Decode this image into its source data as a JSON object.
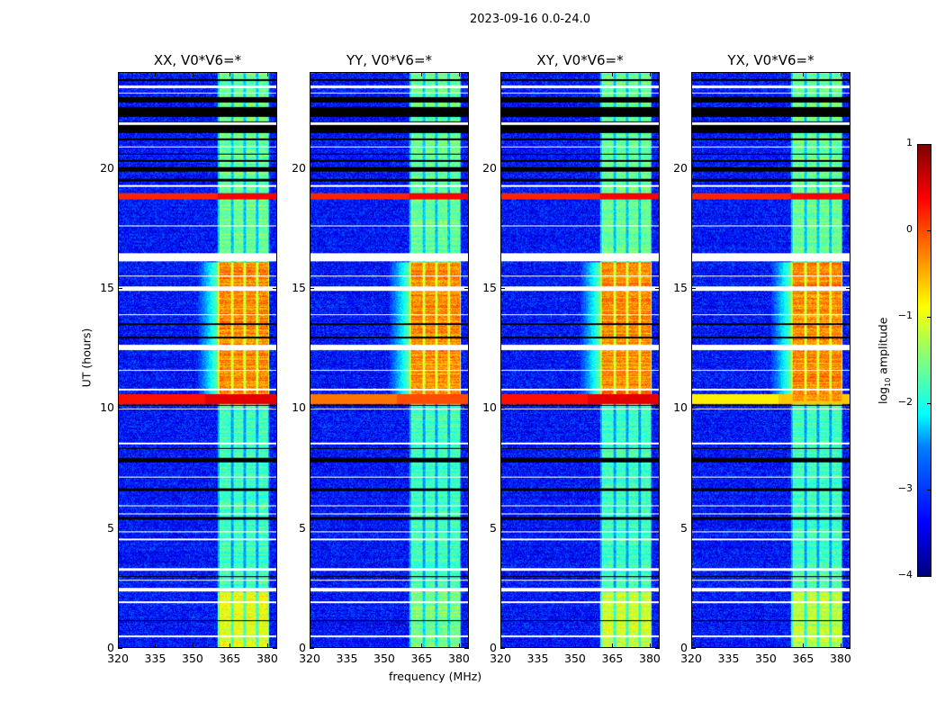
{
  "suptitle": "2023-09-16 0.0-24.0",
  "xlabel": "frequency (MHz)",
  "ylabel": "UT (hours)",
  "chart_data": {
    "type": "heatmap",
    "title": "2023-09-16 0.0-24.0",
    "xlabel": "frequency (MHz)",
    "ylabel": "UT (hours)",
    "xlim": [
      320,
      384
    ],
    "ylim": [
      0,
      24
    ],
    "xticks": [
      "320",
      "335",
      "350",
      "365",
      "380"
    ],
    "xtick_values": [
      320,
      335,
      350,
      365,
      380
    ],
    "yticks": [
      "0",
      "5",
      "10",
      "15",
      "20"
    ],
    "ytick_values": [
      0,
      5,
      10,
      15,
      20
    ],
    "panels": [
      {
        "title": "XX, V0*V6=*",
        "event_10h_level": 0.3,
        "early_band_level": -1.0
      },
      {
        "title": "YY, V0*V6=*",
        "event_10h_level": -0.2,
        "early_band_level": -1.5
      },
      {
        "title": "XY, V0*V6=*",
        "event_10h_level": 0.3,
        "early_band_level": -1.1
      },
      {
        "title": "YX, V0*V6=*",
        "event_10h_level": -0.8,
        "early_band_level": -1.2
      }
    ],
    "background_level": -3.3,
    "bright_channels_MHz": [
      [
        360.5,
        365.5
      ],
      [
        366.5,
        370.5
      ],
      [
        371.5,
        375.5
      ],
      [
        376.5,
        380.5
      ]
    ],
    "band_level_by_time": [
      {
        "from": 0,
        "to": 10.3,
        "level": -1.8
      },
      {
        "from": 10.3,
        "to": 16.1,
        "level": -0.3
      },
      {
        "from": 16.1,
        "to": 24,
        "level": -1.6
      }
    ],
    "strong_rfi_rows_hours": [
      [
        18.75,
        19.0,
        0.4
      ]
    ],
    "flagged_rows_hours": [
      [
        0.45,
        0.5
      ],
      [
        1.85,
        1.95
      ],
      [
        2.35,
        2.5
      ],
      [
        2.8,
        2.85
      ],
      [
        3.2,
        3.3
      ],
      [
        4.5,
        4.55
      ],
      [
        4.8,
        4.85
      ],
      [
        5.55,
        5.6
      ],
      [
        5.9,
        5.95
      ],
      [
        7.1,
        7.15
      ],
      [
        8.5,
        8.55
      ],
      [
        9.95,
        10.0
      ],
      [
        10.75,
        10.8
      ],
      [
        11.55,
        11.6
      ],
      [
        12.45,
        12.65
      ],
      [
        13.9,
        13.95
      ],
      [
        14.9,
        15.1
      ],
      [
        15.5,
        15.55
      ],
      [
        16.15,
        16.5
      ],
      [
        17.6,
        17.65
      ],
      [
        19.25,
        19.35
      ],
      [
        20.9,
        20.95
      ],
      [
        21.85,
        21.95
      ],
      [
        23.15,
        23.2
      ],
      [
        23.4,
        23.5
      ]
    ],
    "dropout_rows_hours": [
      [
        1.1,
        1.15
      ],
      [
        2.95,
        3.0
      ],
      [
        5.35,
        5.45
      ],
      [
        6.55,
        6.65
      ],
      [
        7.75,
        7.95
      ],
      [
        8.3,
        8.35
      ],
      [
        10.1,
        10.15
      ],
      [
        12.9,
        13.0
      ],
      [
        13.5,
        13.55
      ],
      [
        19.5,
        19.6
      ],
      [
        19.9,
        20.1
      ],
      [
        20.3,
        20.4
      ],
      [
        20.6,
        20.65
      ],
      [
        21.2,
        21.3
      ],
      [
        21.5,
        22.0
      ],
      [
        22.2,
        22.6
      ],
      [
        22.8,
        23.0
      ],
      [
        23.7,
        23.75
      ]
    ],
    "colorbar": {
      "label": "log10 amplitude",
      "label_base": "log",
      "label_sub": "10",
      "label_rest": " amplitude",
      "range": [
        -4,
        1
      ],
      "ticks": [
        "1",
        "0",
        "−1",
        "−2",
        "−3",
        "−4"
      ],
      "tick_values": [
        1,
        0,
        -1,
        -2,
        -3,
        -4
      ],
      "cmap": "jet"
    }
  }
}
